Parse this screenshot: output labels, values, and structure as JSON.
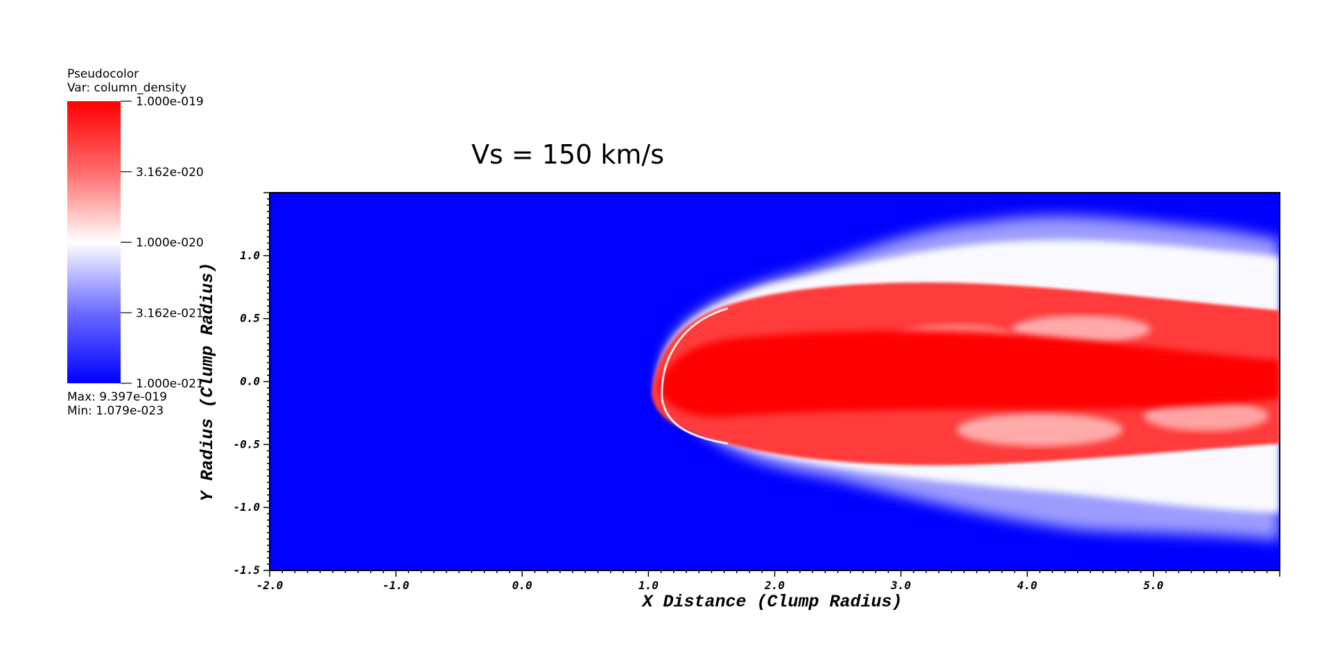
{
  "legend": {
    "plot_type": "Pseudocolor",
    "variable": "Var: column_density",
    "tick_labels": [
      "1.000e-019",
      "3.162e-020",
      "1.000e-020",
      "3.162e-021",
      "1.000e-021"
    ],
    "max_text": "Max:  9.397e-019",
    "min_text": "Min:  1.079e-023",
    "colors": {
      "high": "#ff0000",
      "mid": "#ffffff",
      "low": "#0000ff"
    }
  },
  "chart_data": {
    "type": "heatmap",
    "title": "Vs = 150 km/s",
    "xlabel": "X Distance (Clump Radius)",
    "ylabel": "Y Radius (Clump Radius)",
    "xlim": [
      -2.0,
      6.0
    ],
    "ylim": [
      -1.5,
      1.5
    ],
    "x_ticks": [
      -2.0,
      -1.0,
      0.0,
      1.0,
      2.0,
      3.0,
      4.0,
      5.0
    ],
    "x_tick_labels": [
      "-2.0",
      "-1.0",
      "0.0",
      "1.0",
      "2.0",
      "3.0",
      "4.0",
      "5.0"
    ],
    "y_ticks": [
      -1.5,
      -1.0,
      -0.5,
      0.0,
      0.5,
      1.0
    ],
    "y_tick_labels": [
      "-1.5",
      "-1.0",
      "-0.5",
      "0.0",
      "0.5",
      "1.0"
    ],
    "variable": "column_density",
    "colorbar_range": [
      1e-21,
      1e-19
    ],
    "data_max": 9.397e-19,
    "data_min": 1.079e-23,
    "background_color": "#0000ff"
  }
}
